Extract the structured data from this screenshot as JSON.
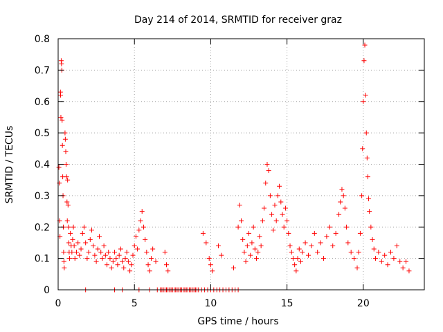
{
  "chart_data": {
    "type": "scatter",
    "title": "Day 214 of 2014, SRMTID for receiver graz",
    "xlabel": "GPS time / hours",
    "ylabel": "SRMTID / TECUs",
    "xlim": [
      0,
      24
    ],
    "ylim": [
      0,
      0.8
    ],
    "xticks": [
      0,
      5,
      10,
      15,
      20
    ],
    "yticks": [
      0,
      0.1,
      0.2,
      0.3,
      0.4,
      0.5,
      0.6,
      0.7,
      0.8
    ],
    "grid": true,
    "marker": "plus",
    "color": "#ff0000",
    "series": [
      {
        "name": "graz",
        "points": [
          [
            0.05,
            0.39
          ],
          [
            0.08,
            0.34
          ],
          [
            0.1,
            0.22
          ],
          [
            0.12,
            0.17
          ],
          [
            0.15,
            0.63
          ],
          [
            0.16,
            0.62
          ],
          [
            0.18,
            0.55
          ],
          [
            0.2,
            0.73
          ],
          [
            0.22,
            0.72
          ],
          [
            0.24,
            0.7
          ],
          [
            0.26,
            0.54
          ],
          [
            0.28,
            0.46
          ],
          [
            0.3,
            0.36
          ],
          [
            0.32,
            0.3
          ],
          [
            0.34,
            0.2
          ],
          [
            0.36,
            0.12
          ],
          [
            0.38,
            0.09
          ],
          [
            0.4,
            0.07
          ],
          [
            0.45,
            0.5
          ],
          [
            0.47,
            0.48
          ],
          [
            0.5,
            0.44
          ],
          [
            0.52,
            0.4
          ],
          [
            0.55,
            0.36
          ],
          [
            0.58,
            0.28
          ],
          [
            0.6,
            0.22
          ],
          [
            0.62,
            0.35
          ],
          [
            0.65,
            0.27
          ],
          [
            0.68,
            0.2
          ],
          [
            0.7,
            0.15
          ],
          [
            0.72,
            0.12
          ],
          [
            0.75,
            0.1
          ],
          [
            0.8,
            0.18
          ],
          [
            0.85,
            0.14
          ],
          [
            0.9,
            0.12
          ],
          [
            0.95,
            0.16
          ],
          [
            1.0,
            0.2
          ],
          [
            1.05,
            0.14
          ],
          [
            1.1,
            0.1
          ],
          [
            1.2,
            0.12
          ],
          [
            1.3,
            0.15
          ],
          [
            1.4,
            0.11
          ],
          [
            1.5,
            0.13
          ],
          [
            1.6,
            0.18
          ],
          [
            1.7,
            0.2
          ],
          [
            1.8,
            0.15
          ],
          [
            1.9,
            0.1
          ],
          [
            2.0,
            0.12
          ],
          [
            2.1,
            0.16
          ],
          [
            2.2,
            0.19
          ],
          [
            2.3,
            0.14
          ],
          [
            2.4,
            0.11
          ],
          [
            2.5,
            0.09
          ],
          [
            2.6,
            0.13
          ],
          [
            2.7,
            0.17
          ],
          [
            2.8,
            0.12
          ],
          [
            2.9,
            0.1
          ],
          [
            3.0,
            0.14
          ],
          [
            3.1,
            0.11
          ],
          [
            3.2,
            0.08
          ],
          [
            3.3,
            0.12
          ],
          [
            3.4,
            0.1
          ],
          [
            3.5,
            0.07
          ],
          [
            3.6,
            0.09
          ],
          [
            3.7,
            0.12
          ],
          [
            3.8,
            0.1
          ],
          [
            3.9,
            0.08
          ],
          [
            4.0,
            0.11
          ],
          [
            4.1,
            0.13
          ],
          [
            4.2,
            0.09
          ],
          [
            4.3,
            0.07
          ],
          [
            4.4,
            0.1
          ],
          [
            4.5,
            0.12
          ],
          [
            4.6,
            0.09
          ],
          [
            4.7,
            0.06
          ],
          [
            4.8,
            0.08
          ],
          [
            4.9,
            0.11
          ],
          [
            5.0,
            0.14
          ],
          [
            5.1,
            0.17
          ],
          [
            5.2,
            0.13
          ],
          [
            5.3,
            0.19
          ],
          [
            5.4,
            0.22
          ],
          [
            5.5,
            0.25
          ],
          [
            5.6,
            0.2
          ],
          [
            5.7,
            0.16
          ],
          [
            5.8,
            0.12
          ],
          [
            5.9,
            0.08
          ],
          [
            6.0,
            0.06
          ],
          [
            6.1,
            0.1
          ],
          [
            6.2,
            0.13
          ],
          [
            6.4,
            0.09
          ],
          [
            7.0,
            0.12
          ],
          [
            7.1,
            0.08
          ],
          [
            7.2,
            0.06
          ],
          [
            9.5,
            0.18
          ],
          [
            9.7,
            0.15
          ],
          [
            9.9,
            0.1
          ],
          [
            10.0,
            0.08
          ],
          [
            10.1,
            0.06
          ],
          [
            10.5,
            0.14
          ],
          [
            10.7,
            0.11
          ],
          [
            11.5,
            0.07
          ],
          [
            11.8,
            0.2
          ],
          [
            11.9,
            0.27
          ],
          [
            12.0,
            0.22
          ],
          [
            12.1,
            0.16
          ],
          [
            12.2,
            0.12
          ],
          [
            12.3,
            0.09
          ],
          [
            12.4,
            0.14
          ],
          [
            12.5,
            0.18
          ],
          [
            12.6,
            0.11
          ],
          [
            12.7,
            0.15
          ],
          [
            12.8,
            0.2
          ],
          [
            12.9,
            0.13
          ],
          [
            13.0,
            0.1
          ],
          [
            13.1,
            0.12
          ],
          [
            13.2,
            0.17
          ],
          [
            13.3,
            0.14
          ],
          [
            13.4,
            0.22
          ],
          [
            13.5,
            0.26
          ],
          [
            13.6,
            0.34
          ],
          [
            13.7,
            0.4
          ],
          [
            13.8,
            0.38
          ],
          [
            13.9,
            0.3
          ],
          [
            14.0,
            0.24
          ],
          [
            14.1,
            0.19
          ],
          [
            14.2,
            0.27
          ],
          [
            14.3,
            0.22
          ],
          [
            14.4,
            0.3
          ],
          [
            14.5,
            0.33
          ],
          [
            14.6,
            0.28
          ],
          [
            14.7,
            0.24
          ],
          [
            14.8,
            0.2
          ],
          [
            14.9,
            0.26
          ],
          [
            15.0,
            0.22
          ],
          [
            15.1,
            0.18
          ],
          [
            15.2,
            0.14
          ],
          [
            15.3,
            0.12
          ],
          [
            15.4,
            0.1
          ],
          [
            15.5,
            0.08
          ],
          [
            15.6,
            0.06
          ],
          [
            15.7,
            0.1
          ],
          [
            15.8,
            0.13
          ],
          [
            15.9,
            0.09
          ],
          [
            16.0,
            0.12
          ],
          [
            16.2,
            0.15
          ],
          [
            16.4,
            0.11
          ],
          [
            16.6,
            0.14
          ],
          [
            16.8,
            0.18
          ],
          [
            17.0,
            0.12
          ],
          [
            17.2,
            0.15
          ],
          [
            17.4,
            0.1
          ],
          [
            17.6,
            0.17
          ],
          [
            17.8,
            0.2
          ],
          [
            18.0,
            0.14
          ],
          [
            18.2,
            0.18
          ],
          [
            18.4,
            0.24
          ],
          [
            18.5,
            0.28
          ],
          [
            18.6,
            0.32
          ],
          [
            18.7,
            0.3
          ],
          [
            18.8,
            0.26
          ],
          [
            18.9,
            0.2
          ],
          [
            19.0,
            0.15
          ],
          [
            19.2,
            0.12
          ],
          [
            19.4,
            0.1
          ],
          [
            19.6,
            0.07
          ],
          [
            19.7,
            0.12
          ],
          [
            19.8,
            0.18
          ],
          [
            19.9,
            0.3
          ],
          [
            19.95,
            0.45
          ],
          [
            20.0,
            0.6
          ],
          [
            20.05,
            0.73
          ],
          [
            20.1,
            0.78
          ],
          [
            20.15,
            0.62
          ],
          [
            20.2,
            0.5
          ],
          [
            20.25,
            0.42
          ],
          [
            20.3,
            0.36
          ],
          [
            20.35,
            0.29
          ],
          [
            20.4,
            0.25
          ],
          [
            20.5,
            0.2
          ],
          [
            20.6,
            0.16
          ],
          [
            20.7,
            0.13
          ],
          [
            20.8,
            0.1
          ],
          [
            21.0,
            0.12
          ],
          [
            21.2,
            0.09
          ],
          [
            21.4,
            0.11
          ],
          [
            21.6,
            0.08
          ],
          [
            21.8,
            0.12
          ],
          [
            22.0,
            0.1
          ],
          [
            22.2,
            0.14
          ],
          [
            22.4,
            0.09
          ],
          [
            22.6,
            0.07
          ],
          [
            22.8,
            0.09
          ],
          [
            23.0,
            0.06
          ],
          [
            1.8,
            0.0
          ],
          [
            3.7,
            0.0
          ],
          [
            4.2,
            0.0
          ],
          [
            5.3,
            0.0
          ],
          [
            6.0,
            0.0
          ],
          [
            6.5,
            0.0
          ],
          [
            6.7,
            0.0
          ],
          [
            6.8,
            0.0
          ],
          [
            6.9,
            0.0
          ],
          [
            7.0,
            0.0
          ],
          [
            7.1,
            0.0
          ],
          [
            7.2,
            0.0
          ],
          [
            7.3,
            0.0
          ],
          [
            7.4,
            0.0
          ],
          [
            7.5,
            0.0
          ],
          [
            7.6,
            0.0
          ],
          [
            7.7,
            0.0
          ],
          [
            7.8,
            0.0
          ],
          [
            7.9,
            0.0
          ],
          [
            8.0,
            0.0
          ],
          [
            8.1,
            0.0
          ],
          [
            8.2,
            0.0
          ],
          [
            8.3,
            0.0
          ],
          [
            8.4,
            0.0
          ],
          [
            8.5,
            0.0
          ],
          [
            8.6,
            0.0
          ],
          [
            8.7,
            0.0
          ],
          [
            8.8,
            0.0
          ],
          [
            8.9,
            0.0
          ],
          [
            9.0,
            0.0
          ],
          [
            9.1,
            0.0
          ],
          [
            9.2,
            0.0
          ],
          [
            9.4,
            0.0
          ],
          [
            9.6,
            0.0
          ],
          [
            9.8,
            0.0
          ],
          [
            10.0,
            0.0
          ],
          [
            10.2,
            0.0
          ],
          [
            10.4,
            0.0
          ],
          [
            10.6,
            0.0
          ],
          [
            10.8,
            0.0
          ],
          [
            11.0,
            0.0
          ],
          [
            11.2,
            0.0
          ],
          [
            11.4,
            0.0
          ],
          [
            11.6,
            0.0
          ],
          [
            11.8,
            0.0
          ]
        ]
      }
    ]
  }
}
